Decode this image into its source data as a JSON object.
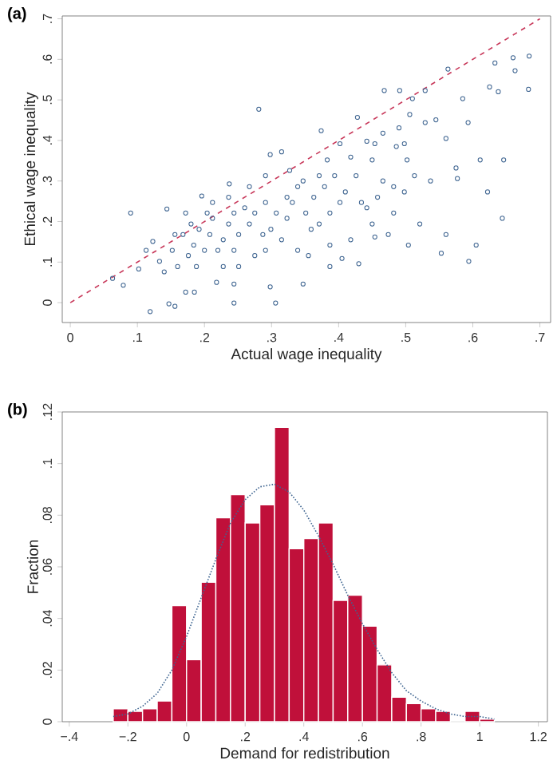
{
  "chart_data": [
    {
      "type": "scatter",
      "title": "(a)",
      "xlabel": "Actual wage inequality",
      "ylabel": "Ethical wage inequality",
      "xlim": [
        -0.012,
        0.716
      ],
      "ylim": [
        -0.049,
        0.707
      ],
      "xticks": [
        0,
        {
          "value": 0.1,
          "label": ".1"
        },
        {
          "value": 0.2,
          "label": ".2"
        },
        {
          "value": 0.3,
          "label": ".3"
        },
        {
          "value": 0.4,
          "label": ".4"
        },
        {
          "value": 0.5,
          "label": ".5"
        },
        {
          "value": 0.6,
          "label": ".6"
        },
        {
          "value": 0.7,
          "label": ".7"
        }
      ],
      "yticks": [
        0,
        {
          "value": 0.1,
          "label": ".1"
        },
        {
          "value": 0.2,
          "label": ".2"
        },
        {
          "value": 0.3,
          "label": ".3"
        },
        {
          "value": 0.4,
          "label": ".4"
        },
        {
          "value": 0.5,
          "label": ".5"
        },
        {
          "value": 0.6,
          "label": ".6"
        },
        {
          "value": 0.7,
          "label": ".7"
        }
      ],
      "series": [
        {
          "color": "#3f6591",
          "marker": "circle",
          "x": [
            0.063,
            0.079,
            0.09,
            0.102,
            0.119,
            0.123,
            0.144,
            0.147,
            0.156,
            0.172,
            0.185,
            0.196,
            0.218,
            0.244,
            0.244,
            0.237,
            0.281,
            0.298,
            0.306,
            0.298,
            0.315,
            0.347,
            0.374,
            0.405,
            0.428,
            0.43,
            0.468,
            0.491,
            0.504,
            0.529,
            0.563,
            0.553,
            0.56,
            0.56,
            0.575,
            0.585,
            0.594,
            0.605,
            0.611,
            0.622,
            0.633,
            0.644,
            0.646,
            0.66,
            0.663,
            0.684,
            0.683,
            0.625,
            0.638,
            0.593,
            0.577,
            0.545,
            0.529,
            0.506,
            0.502,
            0.486,
            0.482,
            0.45,
            0.454,
            0.466,
            0.45,
            0.442,
            0.418,
            0.41,
            0.394,
            0.383,
            0.371,
            0.363,
            0.359,
            0.351,
            0.339,
            0.331,
            0.323,
            0.315,
            0.307,
            0.291,
            0.287,
            0.275,
            0.267,
            0.26,
            0.251,
            0.244,
            0.236,
            0.228,
            0.22,
            0.212,
            0.208,
            0.2,
            0.192,
            0.184,
            0.176,
            0.168,
            0.16,
            0.152,
            0.14,
            0.133,
            0.113,
            0.339,
            0.387,
            0.418,
            0.442,
            0.458,
            0.474,
            0.498,
            0.513,
            0.521,
            0.537,
            0.387,
            0.402,
            0.371,
            0.426,
            0.454,
            0.327,
            0.291,
            0.267,
            0.236,
            0.204,
            0.18,
            0.156,
            0.291,
            0.251,
            0.228,
            0.188,
            0.355,
            0.387,
            0.434,
            0.482,
            0.498,
            0.51,
            0.49,
            0.466,
            0.402,
            0.347,
            0.379,
            0.323,
            0.275,
            0.299,
            0.244,
            0.212,
            0.172
          ],
          "values": [
            0.06,
            0.043,
            0.221,
            0.083,
            -0.022,
            0.151,
            0.231,
            -0.003,
            -0.009,
            0.026,
            0.026,
            0.263,
            0.05,
            0.046,
            -0.001,
            0.293,
            0.477,
            0.039,
            -0.001,
            0.365,
            0.372,
            0.046,
            0.424,
            0.109,
            0.457,
            0.096,
            0.523,
            0.523,
            0.142,
            0.523,
            0.576,
            0.122,
            0.168,
            0.405,
            0.332,
            0.503,
            0.102,
            0.142,
            0.352,
            0.273,
            0.591,
            0.208,
            0.352,
            0.604,
            0.572,
            0.608,
            0.526,
            0.532,
            0.52,
            0.444,
            0.306,
            0.451,
            0.444,
            0.464,
            0.352,
            0.385,
            0.221,
            0.194,
            0.162,
            0.3,
            0.352,
            0.398,
            0.359,
            0.273,
            0.313,
            0.352,
            0.313,
            0.26,
            0.181,
            0.221,
            0.286,
            0.247,
            0.208,
            0.155,
            0.221,
            0.247,
            0.168,
            0.116,
            0.194,
            0.234,
            0.168,
            0.129,
            0.194,
            0.155,
            0.129,
            0.208,
            0.168,
            0.129,
            0.181,
            0.142,
            0.116,
            0.168,
            0.089,
            0.129,
            0.076,
            0.102,
            0.129,
            0.129,
            0.142,
            0.155,
            0.234,
            0.26,
            0.168,
            0.273,
            0.313,
            0.194,
            0.3,
            0.221,
            0.247,
            0.194,
            0.313,
            0.392,
            0.326,
            0.313,
            0.286,
            0.26,
            0.221,
            0.194,
            0.168,
            0.129,
            0.089,
            0.089,
            0.089,
            0.116,
            0.089,
            0.247,
            0.286,
            0.392,
            0.503,
            0.431,
            0.418,
            0.392,
            0.3,
            0.286,
            0.26,
            0.221,
            0.181,
            0.221,
            0.247,
            0.221
          ]
        },
        {
          "type": "line",
          "color": "#c8385a",
          "line_style": "dashed",
          "marker": "none",
          "x": [
            0,
            0.7
          ],
          "values": [
            0,
            0.7
          ]
        }
      ]
    },
    {
      "type": "histogram",
      "title": "(b)",
      "xlabel": "Demand for redistribution",
      "ylabel": "Fraction",
      "xlim": [
        -0.424,
        1.231
      ],
      "ylim": [
        0,
        0.12
      ],
      "xticks": [
        {
          "value": -0.4,
          "label": "−.4"
        },
        {
          "value": -0.2,
          "label": "−.2"
        },
        0,
        {
          "value": 0.2,
          "label": ".2"
        },
        {
          "value": 0.4,
          "label": ".4"
        },
        {
          "value": 0.6,
          "label": ".6"
        },
        {
          "value": 0.8,
          "label": ".8"
        },
        1,
        1.2
      ],
      "yticks": [
        0,
        {
          "value": 0.02,
          "label": ".02"
        },
        {
          "value": 0.04,
          "label": ".04"
        },
        {
          "value": 0.06,
          "label": ".06"
        },
        {
          "value": 0.08,
          "label": ".08"
        },
        {
          "value": 0.1,
          "label": ".1"
        },
        {
          "value": 0.12,
          "label": ".12"
        }
      ],
      "bins": [
        -0.25,
        -0.2,
        -0.15,
        -0.1,
        -0.05,
        0,
        0.05,
        0.1,
        0.15,
        0.2,
        0.25,
        0.3,
        0.35,
        0.4,
        0.45,
        0.5,
        0.55,
        0.6,
        0.65,
        0.7,
        0.75,
        0.8,
        0.85,
        0.9,
        0.95,
        1.0,
        1.05
      ],
      "series": [
        {
          "color": "#c0103a",
          "values": [
            0.005,
            0.004,
            0.005,
            0.008,
            0.045,
            0.024,
            0.054,
            0.079,
            0.088,
            0.077,
            0.084,
            0.114,
            0.067,
            0.071,
            0.077,
            0.047,
            0.049,
            0.037,
            0.022,
            0.0095,
            0.007,
            0.005,
            0.004,
            0,
            0.004,
            0.001
          ]
        },
        {
          "type": "line",
          "color": "#3f6591",
          "line_style": "dotted",
          "marker": "none",
          "x": [
            -0.25,
            -0.2,
            -0.15,
            -0.1,
            -0.05,
            0,
            0.05,
            0.1,
            0.15,
            0.2,
            0.25,
            0.3,
            0.35,
            0.4,
            0.45,
            0.5,
            0.55,
            0.6,
            0.65,
            0.7,
            0.75,
            0.8,
            0.85,
            0.9,
            0.95,
            1.0,
            1.05
          ],
          "values": [
            0.002,
            0.003,
            0.006,
            0.011,
            0.02,
            0.033,
            0.048,
            0.063,
            0.077,
            0.086,
            0.091,
            0.092,
            0.089,
            0.082,
            0.072,
            0.061,
            0.049,
            0.038,
            0.028,
            0.019,
            0.012,
            0.008,
            0.005,
            0.003,
            0.002,
            0.002,
            0.001
          ]
        }
      ]
    }
  ]
}
